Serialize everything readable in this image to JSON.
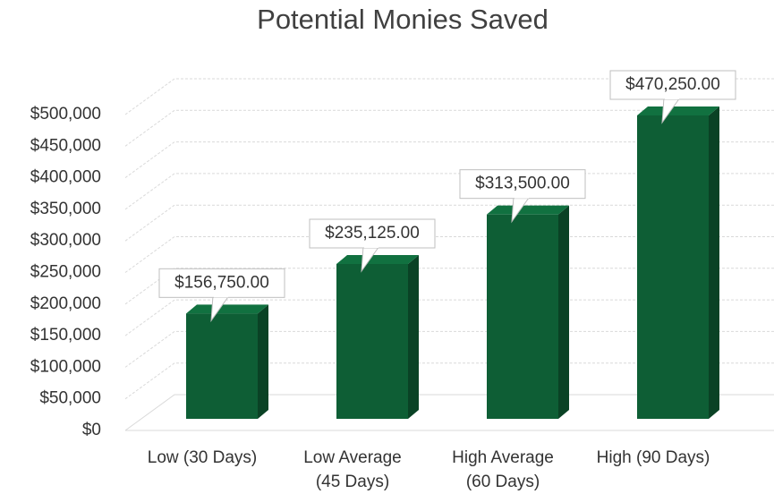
{
  "chart_data": {
    "type": "bar3d",
    "title": "Potential Monies Saved",
    "categories": [
      [
        "Low (30 Days)"
      ],
      [
        "Low Average",
        "(45 Days)"
      ],
      [
        "High Average",
        "(60 Days)"
      ],
      [
        "High (90 Days)"
      ]
    ],
    "values": [
      156750,
      235125,
      313500,
      470250
    ],
    "value_labels": [
      "$156,750.00",
      "$235,125.00",
      "$313,500.00",
      "$470,250.00"
    ],
    "color": "#0e5e35",
    "ylim": [
      0,
      500000
    ],
    "yticks": [
      {
        "value": 0,
        "label": "$0"
      },
      {
        "value": 50000,
        "label": "$50,000"
      },
      {
        "value": 100000,
        "label": "$100,000"
      },
      {
        "value": 150000,
        "label": "$150,000"
      },
      {
        "value": 200000,
        "label": "$200,000"
      },
      {
        "value": 250000,
        "label": "$250,000"
      },
      {
        "value": 300000,
        "label": "$300,000"
      },
      {
        "value": 350000,
        "label": "$350,000"
      },
      {
        "value": 400000,
        "label": "$400,000"
      },
      {
        "value": 450000,
        "label": "$450,000"
      },
      {
        "value": 500000,
        "label": "$500,000"
      }
    ],
    "grid": true
  }
}
